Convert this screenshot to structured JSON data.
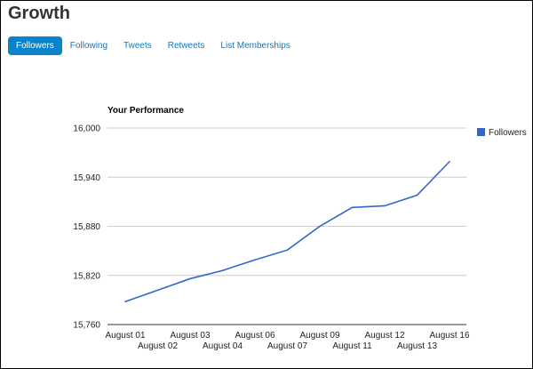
{
  "page_title": "Growth",
  "tabs": [
    {
      "label": "Followers",
      "active": true
    },
    {
      "label": "Following",
      "active": false
    },
    {
      "label": "Tweets",
      "active": false
    },
    {
      "label": "Retweets",
      "active": false
    },
    {
      "label": "List Memberships",
      "active": false
    }
  ],
  "chart_data": {
    "type": "line",
    "title": "Your Performance",
    "categories": [
      "August 01",
      "August 02",
      "August 03",
      "August 04",
      "August 06",
      "August 07",
      "August 09",
      "August 11",
      "August 12",
      "August 13",
      "August 16"
    ],
    "series": [
      {
        "name": "Followers",
        "color": "#3366cc",
        "values": [
          15788,
          15802,
          15816,
          15826,
          15839,
          15851,
          15880,
          15903,
          15905,
          15918,
          15959
        ]
      }
    ],
    "ylim": [
      15760,
      16000
    ],
    "yticks": [
      16000,
      15940,
      15880,
      15820,
      15760
    ],
    "ytick_labels": [
      "16,000",
      "15,940",
      "15,880",
      "15,820",
      "15,760"
    ],
    "grid": true,
    "legend": "right"
  }
}
